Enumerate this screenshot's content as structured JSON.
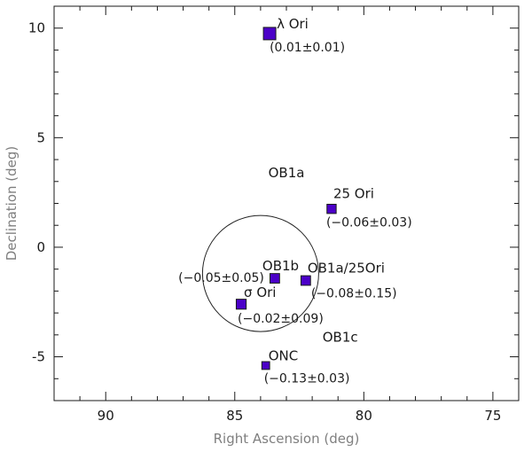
{
  "chart_data": {
    "type": "scatter",
    "title": "",
    "xlabel": "Right Ascension (deg)",
    "ylabel": "Declination (deg)",
    "xlim": [
      92,
      74
    ],
    "ylim": [
      -7,
      11
    ],
    "x_reversed": true,
    "x_ticks": [
      90,
      85,
      80,
      75
    ],
    "y_ticks": [
      -5,
      0,
      5,
      10
    ],
    "grid": false,
    "marker_color": "#4b00c8",
    "points": [
      {
        "name": "λ Ori",
        "ra": 83.65,
        "dec": 9.75,
        "value": "(0.01±0.01)",
        "size": 1.0
      },
      {
        "name": "25 Ori",
        "ra": 81.25,
        "dec": 1.75,
        "value": "(−0.06±0.03)",
        "size": 0.55
      },
      {
        "name": "OB1b",
        "ra": 83.45,
        "dec": -1.42,
        "value": "(−0.05±0.05)",
        "size": 0.6
      },
      {
        "name": "OB1a/25Ori",
        "ra": 82.25,
        "dec": -1.52,
        "value": "(−0.08±0.15)",
        "size": 0.6
      },
      {
        "name": "σ Ori",
        "ra": 84.75,
        "dec": -2.6,
        "value": "(−0.02±0.09)",
        "size": 0.65
      },
      {
        "name": "ONC",
        "ra": 83.8,
        "dec": -5.4,
        "value": "(−0.13±0.03)",
        "size": 0.35
      }
    ],
    "region_labels": [
      {
        "text": "OB1a",
        "ra": 83.7,
        "dec": 3.2
      },
      {
        "text": "OB1c",
        "ra": 81.6,
        "dec": -4.3
      }
    ],
    "circle": {
      "center_ra": 84.0,
      "center_dec": -1.2,
      "radius_deg": 2.25
    }
  }
}
